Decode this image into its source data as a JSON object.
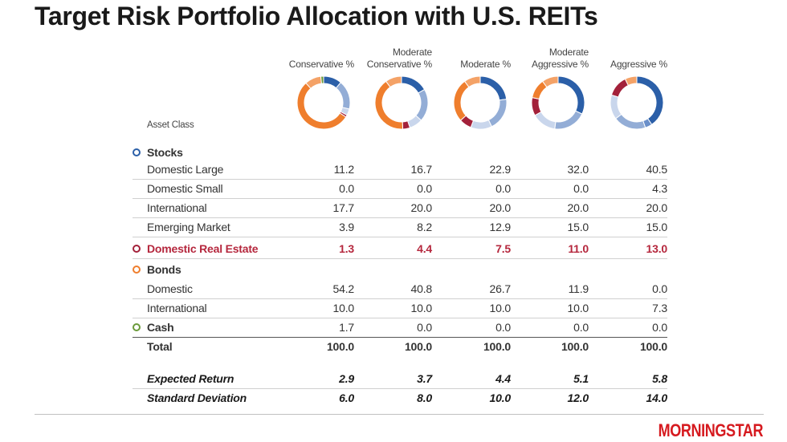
{
  "title": "Target Risk Portfolio Allocation with U.S. REITs",
  "asset_class_label": "Asset Class",
  "colors": {
    "stocks_large": "#2b5fa8",
    "stocks_small": "#6a8fc9",
    "stocks_international": "#93add6",
    "stocks_emerging": "#c9d6ec",
    "real_estate": "#a3213a",
    "bonds_domestic": "#ef7e2d",
    "bonds_international": "#f4a267",
    "cash": "#6a9a3a",
    "highlight_text": "#b5273d"
  },
  "columns": [
    {
      "line1": "",
      "line2": "Conservative %"
    },
    {
      "line1": "Moderate",
      "line2": "Conservative %"
    },
    {
      "line1": "",
      "line2": "Moderate %"
    },
    {
      "line1": "Moderate",
      "line2": "Aggressive %"
    },
    {
      "line1": "",
      "line2": "Aggressive %"
    }
  ],
  "rows": [
    {
      "label": "Stocks",
      "kind": "group",
      "marker_color": "#2b5fa8",
      "values": [
        "",
        "",
        "",
        "",
        ""
      ]
    },
    {
      "label": "Domestic Large",
      "kind": "item",
      "values": [
        "11.2",
        "16.7",
        "22.9",
        "32.0",
        "40.5"
      ]
    },
    {
      "label": "Domestic Small",
      "kind": "item",
      "values": [
        "0.0",
        "0.0",
        "0.0",
        "0.0",
        "4.3"
      ]
    },
    {
      "label": "International",
      "kind": "item",
      "values": [
        "17.7",
        "20.0",
        "20.0",
        "20.0",
        "20.0"
      ]
    },
    {
      "label": "Emerging Market",
      "kind": "item",
      "values": [
        "3.9",
        "8.2",
        "12.9",
        "15.0",
        "15.0"
      ]
    },
    {
      "label": "Domestic Real Estate",
      "kind": "highlight",
      "marker_color": "#a3213a",
      "values": [
        "1.3",
        "4.4",
        "7.5",
        "11.0",
        "13.0"
      ]
    },
    {
      "label": "Bonds",
      "kind": "group",
      "marker_color": "#ef7e2d",
      "values": [
        "",
        "",
        "",
        "",
        ""
      ]
    },
    {
      "label": "Domestic",
      "kind": "item",
      "values": [
        "54.2",
        "40.8",
        "26.7",
        "11.9",
        "0.0"
      ]
    },
    {
      "label": "International",
      "kind": "item",
      "values": [
        "10.0",
        "10.0",
        "10.0",
        "10.0",
        "7.3"
      ]
    },
    {
      "label": "Cash",
      "kind": "group-value",
      "marker_color": "#6a9a3a",
      "values": [
        "1.7",
        "0.0",
        "0.0",
        "0.0",
        "0.0"
      ]
    },
    {
      "label": "Total",
      "kind": "total",
      "values": [
        "100.0",
        "100.0",
        "100.0",
        "100.0",
        "100.0"
      ]
    },
    {
      "label": "Expected Return",
      "kind": "stat",
      "values": [
        "2.9",
        "3.7",
        "4.4",
        "5.1",
        "5.8"
      ]
    },
    {
      "label": "Standard Deviation",
      "kind": "stat",
      "values": [
        "6.0",
        "8.0",
        "10.0",
        "12.0",
        "14.0"
      ]
    }
  ],
  "logo_text": "MORNINGSTAR",
  "chart_data": {
    "type": "pie",
    "variant": "donut",
    "categories": [
      "Domestic Large",
      "Domestic Small",
      "International",
      "Emerging Market",
      "Domestic Real Estate",
      "Domestic Bonds",
      "International Bonds",
      "Cash"
    ],
    "series": [
      {
        "name": "Conservative %",
        "values": [
          11.2,
          0.0,
          17.7,
          3.9,
          1.3,
          54.2,
          10.0,
          1.7
        ]
      },
      {
        "name": "Moderate Conservative %",
        "values": [
          16.7,
          0.0,
          20.0,
          8.2,
          4.4,
          40.8,
          10.0,
          0.0
        ]
      },
      {
        "name": "Moderate %",
        "values": [
          22.9,
          0.0,
          20.0,
          12.9,
          7.5,
          26.7,
          10.0,
          0.0
        ]
      },
      {
        "name": "Moderate Aggressive %",
        "values": [
          32.0,
          0.0,
          20.0,
          15.0,
          11.0,
          11.9,
          10.0,
          0.0
        ]
      },
      {
        "name": "Aggressive %",
        "values": [
          40.5,
          4.3,
          20.0,
          15.0,
          13.0,
          0.0,
          7.3,
          0.0
        ]
      }
    ],
    "slice_colors": [
      "#2b5fa8",
      "#6a8fc9",
      "#93add6",
      "#c9d6ec",
      "#a3213a",
      "#ef7e2d",
      "#f4a267",
      "#6a9a3a"
    ],
    "title": "",
    "legend": "none"
  }
}
